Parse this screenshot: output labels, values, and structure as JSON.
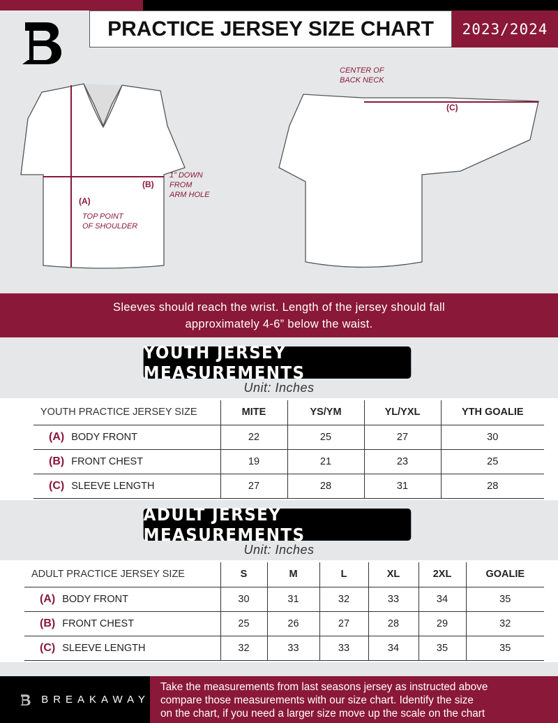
{
  "header": {
    "title": "PRACTICE JERSEY SIZE CHART",
    "season": "2023/2024",
    "logo_letter": "B"
  },
  "diagram": {
    "center_back_neck": [
      "CENTER OF",
      "BACK NECK"
    ],
    "label_a": "(A)",
    "label_b": "(B)",
    "label_c": "(C)",
    "arm_hole_note": [
      "1” DOWN",
      "FROM",
      "ARM HOLE"
    ],
    "shoulder_note": [
      "TOP POINT",
      "OF SHOULDER"
    ]
  },
  "advice": [
    "Sleeves should reach the wrist. Length of the jersey should fall",
    "approximately 4-6” below the waist."
  ],
  "youth": {
    "heading": "YOUTH JERSEY MEASUREMENTS",
    "unit": "Unit: Inches",
    "columns": [
      "YOUTH PRACTICE JERSEY SIZE",
      "MITE",
      "YS/YM",
      "YL/YXL",
      "YTH GOALIE"
    ],
    "rows": [
      {
        "letter": "(A)",
        "label": "BODY FRONT",
        "values": [
          "22",
          "25",
          "27",
          "30"
        ]
      },
      {
        "letter": "(B)",
        "label": "FRONT CHEST",
        "values": [
          "19",
          "21",
          "23",
          "25"
        ]
      },
      {
        "letter": "(C)",
        "label": "SLEEVE LENGTH",
        "values": [
          "27",
          "28",
          "31",
          "28"
        ]
      }
    ]
  },
  "adult": {
    "heading": "ADULT JERSEY MEASUREMENTS",
    "unit": "Unit: Inches",
    "columns": [
      "ADULT PRACTICE JERSEY SIZE",
      "S",
      "M",
      "L",
      "XL",
      "2XL",
      "GOALIE"
    ],
    "rows": [
      {
        "letter": "(A)",
        "label": "BODY FRONT",
        "values": [
          "30",
          "31",
          "32",
          "33",
          "34",
          "35"
        ]
      },
      {
        "letter": "(B)",
        "label": "FRONT CHEST",
        "values": [
          "25",
          "26",
          "27",
          "28",
          "29",
          "32"
        ]
      },
      {
        "letter": "(C)",
        "label": "SLEEVE LENGTH",
        "values": [
          "32",
          "33",
          "33",
          "34",
          "35",
          "35"
        ]
      }
    ]
  },
  "footer": {
    "brand": "BREAKAWAY",
    "text": [
      "Take the measurements from last seasons jersey as instructed above",
      "compare those measurements  with our size chart. Identify the size",
      "on the chart, if you need a larger size move up the scale on the chart"
    ]
  },
  "colors": {
    "accent": "#8a1838",
    "background": "#e6e7e8"
  }
}
